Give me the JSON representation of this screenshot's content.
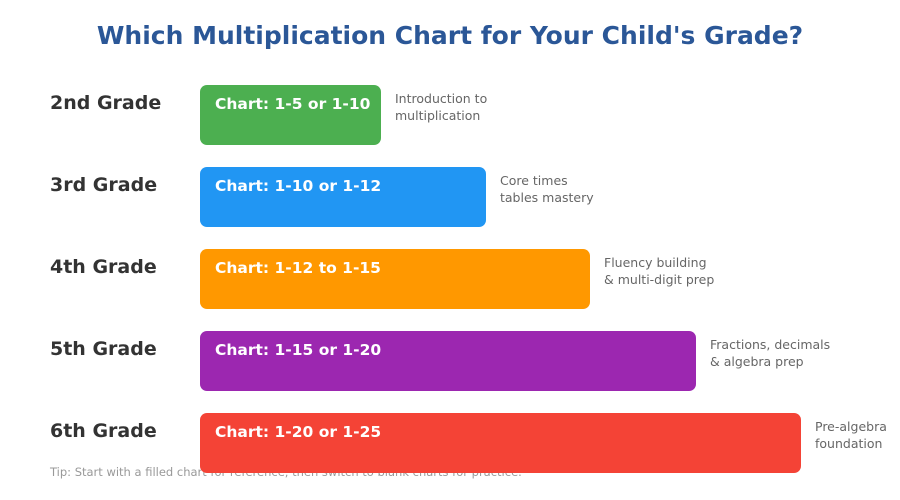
{
  "title": "Which Multiplication Chart for Your Child's Grade?",
  "tip": "Tip: Start with a filled chart for reference, then switch to blank charts for practice.",
  "rows": [
    {
      "grade": "2nd Grade",
      "chart": "Chart: 1-5 or 1-10",
      "note_line1": "Introduction to",
      "note_line2": "multiplication",
      "color": "#4caf50"
    },
    {
      "grade": "3rd Grade",
      "chart": "Chart: 1-10 or 1-12",
      "note_line1": "Core times",
      "note_line2": "tables mastery",
      "color": "#2196f3"
    },
    {
      "grade": "4th Grade",
      "chart": "Chart: 1-12 to 1-15",
      "note_line1": "Fluency building",
      "note_line2": "& multi-digit prep",
      "color": "#ff9800"
    },
    {
      "grade": "5th Grade",
      "chart": "Chart: 1-15 or 1-20",
      "note_line1": "Fractions, decimals",
      "note_line2": "& algebra prep",
      "color": "#9c27b0"
    },
    {
      "grade": "6th Grade",
      "chart": "Chart: 1-20 or 1-25",
      "note_line1": "Pre-algebra",
      "note_line2": "foundation",
      "color": "#f44336"
    }
  ]
}
